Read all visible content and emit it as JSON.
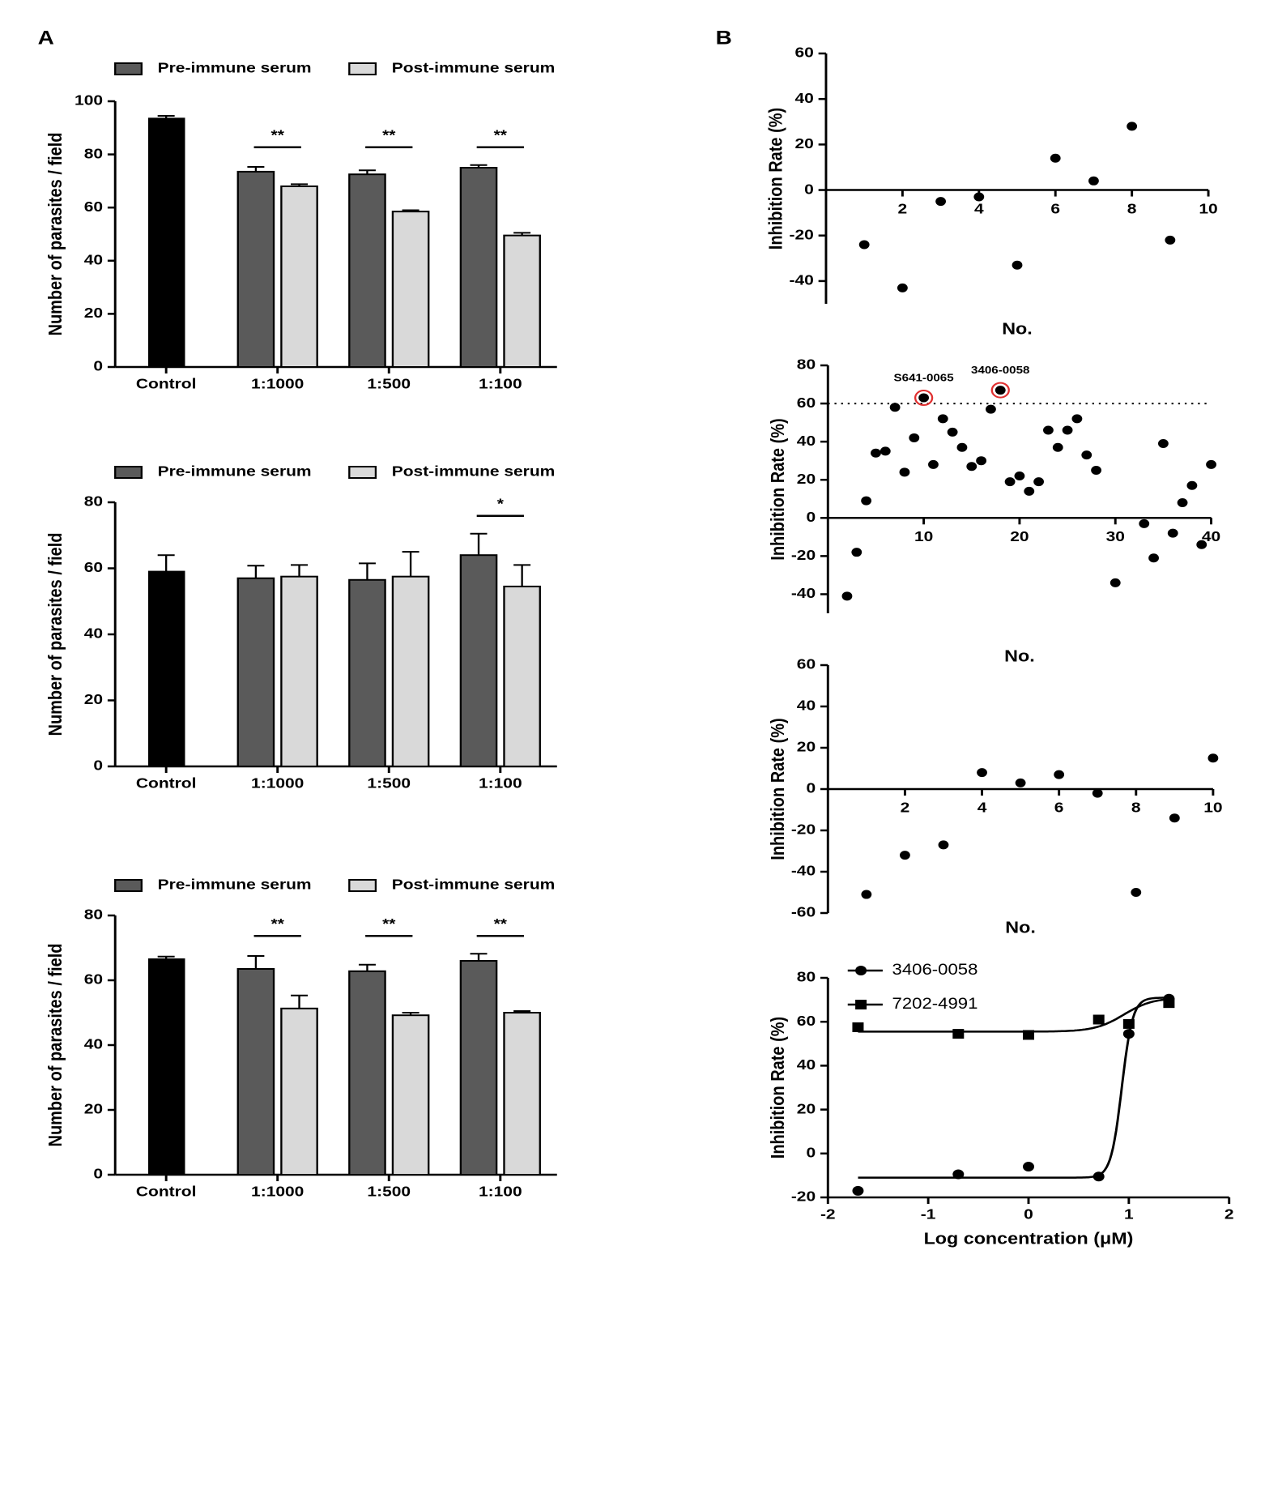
{
  "panels": [
    "A",
    "B"
  ],
  "chart_data": [
    {
      "type": "bar",
      "ylabel": "Number of parasites / field",
      "legend": "top",
      "categories": [
        "Control",
        "1:1000",
        "1:500",
        "1:100"
      ],
      "control_value": 93.5,
      "control_error": 1,
      "control_color": "#000000",
      "series": [
        {
          "name": "Pre-immune serum",
          "color": "#5a5a5a",
          "values": [
            null,
            73.5,
            72.5,
            75
          ],
          "errors": [
            null,
            1.8,
            1.5,
            1
          ]
        },
        {
          "name": "Post-immune serum",
          "color": "#d9d9d9",
          "values": [
            null,
            68,
            58.5,
            49.5
          ],
          "errors": [
            null,
            0.8,
            0.5,
            1
          ]
        }
      ],
      "significance": [
        null,
        "**",
        "**",
        "**"
      ],
      "ylim": [
        0,
        100
      ],
      "yticks": [
        0,
        20,
        40,
        60,
        80,
        100
      ]
    },
    {
      "type": "bar",
      "ylabel": "Number of parasites / field",
      "legend": "top",
      "categories": [
        "Control",
        "1:1000",
        "1:500",
        "1:100"
      ],
      "control_value": 59,
      "control_error": 5,
      "control_color": "#000000",
      "series": [
        {
          "name": "Pre-immune serum",
          "color": "#5a5a5a",
          "values": [
            null,
            57,
            56.5,
            64
          ],
          "errors": [
            null,
            3.8,
            5,
            6.5
          ]
        },
        {
          "name": "Post-immune serum",
          "color": "#d9d9d9",
          "values": [
            null,
            57.5,
            57.5,
            54.5
          ],
          "errors": [
            null,
            3.5,
            7.5,
            6.5
          ]
        }
      ],
      "significance": [
        null,
        null,
        null,
        "*"
      ],
      "ylim": [
        0,
        80
      ],
      "yticks": [
        0,
        20,
        40,
        60,
        80
      ]
    },
    {
      "type": "bar",
      "ylabel": "Number of parasites / field",
      "legend": "top",
      "categories": [
        "Control",
        "1:1000",
        "1:500",
        "1:100"
      ],
      "control_value": 66.5,
      "control_error": 0.8,
      "control_color": "#000000",
      "series": [
        {
          "name": "Pre-immune serum",
          "color": "#5a5a5a",
          "values": [
            null,
            63.5,
            62.8,
            66
          ],
          "errors": [
            null,
            4,
            2,
            2.2
          ]
        },
        {
          "name": "Post-immune serum",
          "color": "#d9d9d9",
          "values": [
            null,
            51.3,
            49.2,
            50
          ],
          "errors": [
            null,
            4,
            0.8,
            0.5
          ]
        }
      ],
      "significance": [
        null,
        "**",
        "**",
        "**"
      ],
      "ylim": [
        0,
        80
      ],
      "yticks": [
        0,
        20,
        40,
        60,
        80
      ]
    },
    {
      "type": "scatter",
      "xlabel": "No.",
      "ylabel": "Inhibition Rate (%)",
      "color": "#000000",
      "x": [
        1,
        2,
        3,
        4,
        5,
        6,
        7,
        8,
        9
      ],
      "values": [
        -24,
        -43,
        -5,
        -3,
        -33,
        14,
        4,
        28,
        -22
      ],
      "xlim": [
        0,
        10
      ],
      "xticks": [
        2,
        4,
        6,
        8,
        10
      ],
      "ylim": [
        -50,
        60
      ],
      "yticks": [
        -40,
        -20,
        0,
        20,
        40,
        60
      ]
    },
    {
      "type": "scatter",
      "xlabel": "No.",
      "ylabel": "Inhibition Rate (%)",
      "color": "#000000",
      "highlight_color": "#e03030",
      "x": [
        2,
        3,
        4,
        5,
        6,
        7,
        8,
        9,
        10,
        11,
        12,
        13,
        14,
        15,
        16,
        17,
        18,
        19,
        20,
        21,
        22,
        23,
        24,
        25,
        26,
        27,
        28,
        30,
        33,
        34,
        35,
        36,
        37,
        38,
        39,
        40
      ],
      "values": [
        -41,
        -18,
        9,
        34,
        35,
        58,
        24,
        42,
        63,
        28,
        52,
        45,
        37,
        27,
        30,
        57,
        67,
        19,
        22,
        14,
        19,
        46,
        37,
        46,
        52,
        33,
        25,
        -34,
        -3,
        -21,
        39,
        -8,
        8,
        17,
        -14,
        28
      ],
      "point_labels": [
        null,
        null,
        null,
        null,
        null,
        null,
        null,
        null,
        "S641-0065",
        null,
        null,
        null,
        null,
        null,
        null,
        null,
        "3406-0058",
        null,
        null,
        null,
        null,
        null,
        null,
        null,
        null,
        null,
        null,
        null,
        null,
        null,
        null,
        null,
        null,
        null,
        null,
        null
      ],
      "reference_line": 60,
      "xlim": [
        0,
        40
      ],
      "xticks": [
        10,
        20,
        30,
        40
      ],
      "ylim": [
        -50,
        80
      ],
      "yticks": [
        -40,
        -20,
        0,
        20,
        40,
        60,
        80
      ]
    },
    {
      "type": "scatter",
      "xlabel": "No.",
      "ylabel": "Inhibition Rate (%)",
      "color": "#000000",
      "x": [
        1,
        2,
        3,
        4,
        5,
        6,
        7,
        8,
        9,
        10
      ],
      "values": [
        -51,
        -32,
        -27,
        8,
        3,
        7,
        -2,
        -50,
        -14,
        15
      ],
      "xlim": [
        0,
        10
      ],
      "xticks": [
        2,
        4,
        6,
        8,
        10
      ],
      "ylim": [
        -60,
        60
      ],
      "yticks": [
        -60,
        -40,
        -20,
        0,
        20,
        40,
        60
      ]
    },
    {
      "type": "line",
      "xlabel": "Log concentration (μM)",
      "ylabel": "Inhibition Rate (%)",
      "legend": "top-left",
      "x": [
        -1.7,
        -0.7,
        0,
        0.7,
        1,
        1.4
      ],
      "series": [
        {
          "name": "3406-0058",
          "color": "#000000",
          "marker": "circle",
          "values": [
            -17,
            -9.5,
            -6,
            -10.5,
            54.5,
            70.5
          ],
          "fit": {
            "bottom": -11,
            "top": 71,
            "logEC50": 0.93,
            "hill": 8
          }
        },
        {
          "name": "7202-4991",
          "color": "#000000",
          "marker": "square",
          "values": [
            57.5,
            54.5,
            54,
            61,
            59,
            68.5
          ],
          "fit": {
            "bottom": 55.5,
            "top": 71,
            "logEC50": 0.95,
            "hill": 3
          }
        }
      ],
      "xlim": [
        -2,
        2
      ],
      "xticks": [
        -2,
        -1,
        0,
        1,
        2
      ],
      "ylim": [
        -20,
        80
      ],
      "yticks": [
        -20,
        0,
        20,
        40,
        60,
        80
      ]
    }
  ]
}
